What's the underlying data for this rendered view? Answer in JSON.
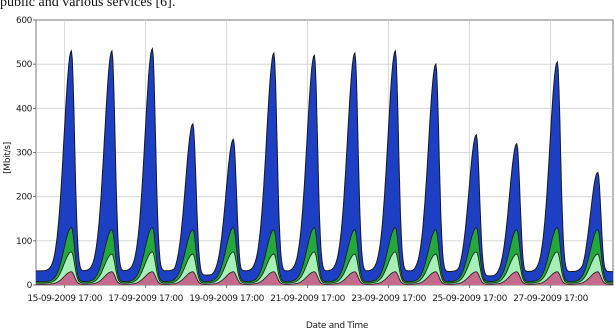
{
  "caption": "public and various services [6].",
  "chart_data": {
    "type": "area",
    "title": "",
    "xlabel": "Date and Time",
    "ylabel": "[Mbit/s]",
    "ylim": [
      0,
      600
    ],
    "yticks": [
      0,
      100,
      200,
      300,
      400,
      500,
      600
    ],
    "xlim": [
      "2009-09-15 00:00",
      "2009-09-29 06:00"
    ],
    "xticks": [
      {
        "x": "2009-09-15 17:00",
        "label": "15-09-2009 17:00"
      },
      {
        "x": "2009-09-17 17:00",
        "label": "17-09-2009 17:00"
      },
      {
        "x": "2009-09-19 17:00",
        "label": "19-09-2009 17:00"
      },
      {
        "x": "2009-09-21 17:00",
        "label": "21-09-2009 17:00"
      },
      {
        "x": "2009-09-23 17:00",
        "label": "23-09-2009 17:00"
      },
      {
        "x": "2009-09-25 17:00",
        "label": "25-09-2009 17:00"
      },
      {
        "x": "2009-09-27 17:00",
        "label": "27-09-2009 17:00"
      }
    ],
    "grid": true,
    "legend": "none",
    "daily_peaks": {
      "time_of_peak": "21:00",
      "dates": [
        "2009-09-15",
        "2009-09-16",
        "2009-09-17",
        "2009-09-18",
        "2009-09-19",
        "2009-09-20",
        "2009-09-21",
        "2009-09-22",
        "2009-09-23",
        "2009-09-24",
        "2009-09-25",
        "2009-09-26",
        "2009-09-27",
        "2009-09-28"
      ],
      "series": [
        {
          "color": "#c46a8c",
          "values": [
            30,
            30,
            30,
            30,
            30,
            30,
            30,
            30,
            30,
            30,
            30,
            30,
            30,
            30
          ]
        },
        {
          "color": "#a6f0b8",
          "values": [
            45,
            40,
            45,
            40,
            45,
            40,
            45,
            40,
            45,
            40,
            45,
            40,
            45,
            40
          ]
        },
        {
          "color": "#23a83c",
          "values": [
            55,
            55,
            55,
            55,
            55,
            55,
            55,
            55,
            55,
            55,
            55,
            55,
            55,
            55
          ]
        },
        {
          "color": "#1c3fc4",
          "values": [
            400,
            405,
            405,
            240,
            200,
            400,
            390,
            400,
            400,
            375,
            210,
            195,
            375,
            130
          ]
        }
      ],
      "night_minimum_total": 12
    }
  }
}
